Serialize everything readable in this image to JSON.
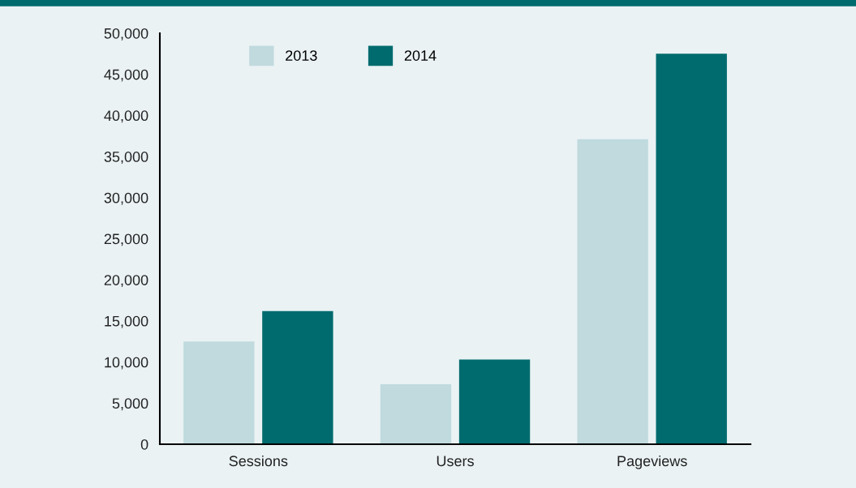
{
  "chart_data": {
    "type": "bar",
    "categories": [
      "Sessions",
      "Users",
      "Pageviews"
    ],
    "series": [
      {
        "name": "2013",
        "color": "#c0dade",
        "values": [
          12500,
          7300,
          37100
        ]
      },
      {
        "name": "2014",
        "color": "#006b6e",
        "values": [
          16200,
          10300,
          47500
        ]
      }
    ],
    "ylim": [
      0,
      50000
    ],
    "yticks": [
      0,
      {
        "value": 5000,
        "label": "5,000"
      },
      {
        "value": 10000,
        "label": "10,000"
      },
      {
        "value": 15000,
        "label": "15,000"
      },
      {
        "value": 20000,
        "label": "20,000"
      },
      {
        "value": 25000,
        "label": "25,000"
      },
      {
        "value": 30000,
        "label": "30,000"
      },
      {
        "value": 35000,
        "label": "35,000"
      },
      {
        "value": 40000,
        "label": "40,000"
      },
      {
        "value": 45000,
        "label": "45,000"
      },
      {
        "value": 50000,
        "label": "50,000"
      }
    ],
    "grid": false,
    "legend": "top left"
  }
}
